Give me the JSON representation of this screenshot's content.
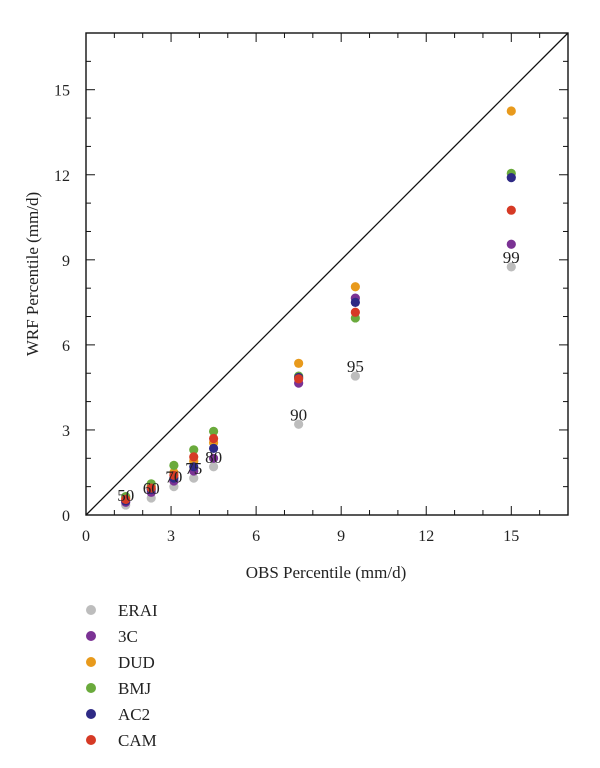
{
  "chart_data": {
    "type": "scatter",
    "xlabel": "OBS Percentile (mm/d)",
    "ylabel": "WRF Percentile (mm/d)",
    "xlim": [
      0,
      17
    ],
    "ylim": [
      0,
      17
    ],
    "xticks": [
      0,
      3,
      6,
      9,
      12,
      15
    ],
    "yticks": [
      0,
      3,
      6,
      9,
      12,
      15
    ],
    "grid": false,
    "legend_position": "bottom-left",
    "diagonal_line": "1:1",
    "series": [
      {
        "name": "ERAI",
        "color": "#bdbdbd",
        "points": [
          [
            1.4,
            0.35
          ],
          [
            2.3,
            0.6
          ],
          [
            3.1,
            1.0
          ],
          [
            3.8,
            1.3
          ],
          [
            4.5,
            1.7
          ],
          [
            7.5,
            3.2
          ],
          [
            9.5,
            4.9
          ],
          [
            15.0,
            8.75
          ]
        ]
      },
      {
        "name": "3C",
        "color": "#7b3294",
        "points": [
          [
            1.4,
            0.45
          ],
          [
            2.3,
            0.8
          ],
          [
            3.1,
            1.2
          ],
          [
            3.8,
            1.55
          ],
          [
            4.5,
            2.0
          ],
          [
            7.5,
            4.65
          ],
          [
            9.5,
            7.65
          ],
          [
            15.0,
            9.55
          ]
        ]
      },
      {
        "name": "DUD",
        "color": "#e89a1c",
        "points": [
          [
            1.4,
            0.6
          ],
          [
            2.3,
            1.0
          ],
          [
            3.1,
            1.5
          ],
          [
            3.8,
            1.9
          ],
          [
            4.5,
            2.55
          ],
          [
            7.5,
            5.35
          ],
          [
            9.5,
            8.05
          ],
          [
            15.0,
            14.25
          ]
        ]
      },
      {
        "name": "BMJ",
        "color": "#6aaa3c",
        "points": [
          [
            1.4,
            0.65
          ],
          [
            2.3,
            1.1
          ],
          [
            3.1,
            1.75
          ],
          [
            3.8,
            2.3
          ],
          [
            4.5,
            2.95
          ],
          [
            7.5,
            4.9
          ],
          [
            9.5,
            6.95
          ],
          [
            15.0,
            12.05
          ]
        ]
      },
      {
        "name": "AC2",
        "color": "#2e2a85",
        "points": [
          [
            1.4,
            0.5
          ],
          [
            2.3,
            0.9
          ],
          [
            3.1,
            1.3
          ],
          [
            3.8,
            1.7
          ],
          [
            4.5,
            2.35
          ],
          [
            7.5,
            4.85
          ],
          [
            9.5,
            7.5
          ],
          [
            15.0,
            11.9
          ]
        ]
      },
      {
        "name": "CAM",
        "color": "#d63a25",
        "points": [
          [
            1.4,
            0.55
          ],
          [
            2.3,
            0.95
          ],
          [
            3.1,
            1.4
          ],
          [
            3.8,
            2.05
          ],
          [
            4.5,
            2.7
          ],
          [
            7.5,
            4.8
          ],
          [
            9.5,
            7.15
          ],
          [
            15.0,
            10.75
          ]
        ]
      }
    ],
    "annotations": [
      {
        "text": "50",
        "x": 1.4,
        "y": 0.35
      },
      {
        "text": "60",
        "x": 2.3,
        "y": 0.6
      },
      {
        "text": "70",
        "x": 3.1,
        "y": 1.0
      },
      {
        "text": "75",
        "x": 3.8,
        "y": 1.3
      },
      {
        "text": "80",
        "x": 4.5,
        "y": 1.7
      },
      {
        "text": "90",
        "x": 7.5,
        "y": 3.2
      },
      {
        "text": "95",
        "x": 9.5,
        "y": 4.9
      },
      {
        "text": "99",
        "x": 15.0,
        "y": 8.75
      }
    ]
  }
}
